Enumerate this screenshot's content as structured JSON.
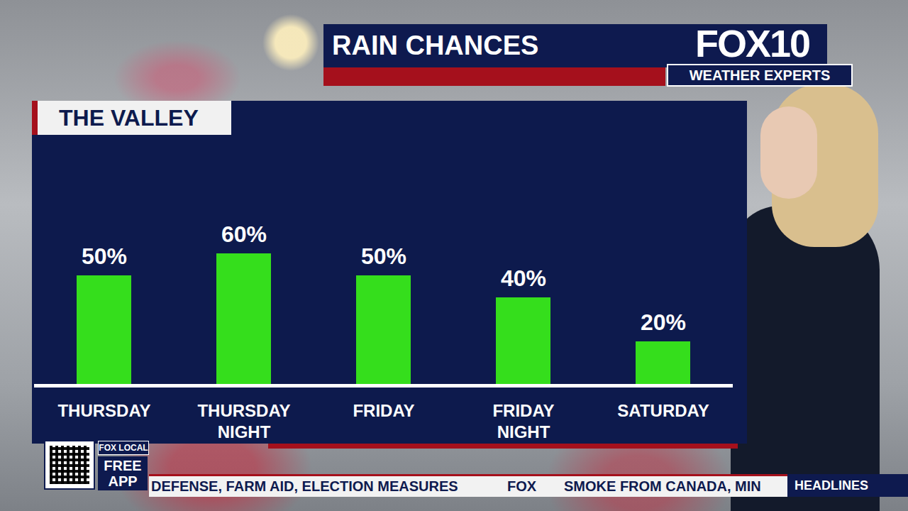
{
  "header": {
    "title": "RAIN CHANCES",
    "brand": "FOX10",
    "tagline": "WEATHER EXPERTS"
  },
  "chart_data": {
    "type": "bar",
    "title": "THE VALLEY",
    "categories": [
      "THURSDAY",
      "THURSDAY NIGHT",
      "FRIDAY",
      "FRIDAY NIGHT",
      "SATURDAY"
    ],
    "values": [
      50,
      60,
      50,
      40,
      20
    ],
    "value_labels": [
      "50%",
      "60%",
      "50%",
      "40%",
      "20%"
    ],
    "color": "#35de1c",
    "ylim": [
      0,
      100
    ],
    "grid": false,
    "data_labels": true,
    "tick_labels": "x"
  },
  "app_promo": {
    "network": "FOX LOCAL",
    "text": "FREE APP"
  },
  "ticker": {
    "items": [
      "DEFENSE, FARM AID, ELECTION MEASURES",
      "FOX",
      "SMOKE FROM CANADA, MIN"
    ],
    "section": "HEADLINES"
  }
}
